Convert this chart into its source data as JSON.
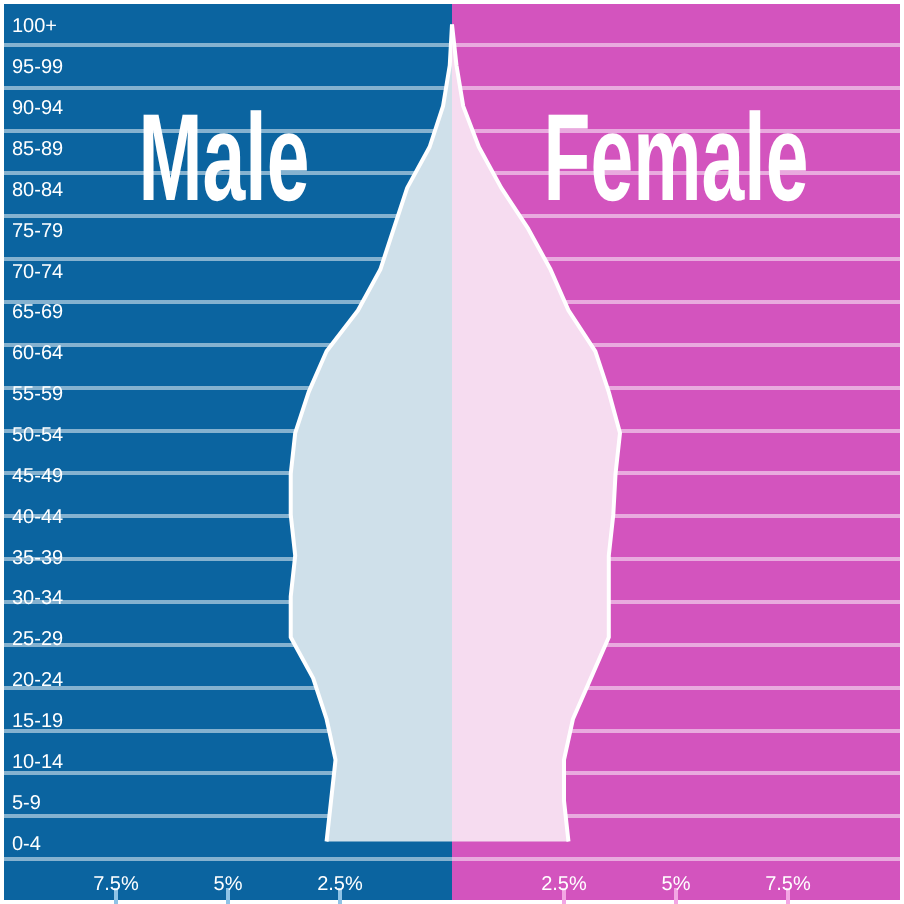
{
  "chart_data": {
    "type": "area",
    "orientation": "horizontal",
    "categories": [
      "100+",
      "95-99",
      "90-94",
      "85-89",
      "80-84",
      "75-79",
      "70-74",
      "65-69",
      "60-64",
      "55-59",
      "50-54",
      "45-49",
      "40-44",
      "35-39",
      "30-34",
      "25-29",
      "20-24",
      "15-19",
      "10-14",
      "5-9",
      "0-4"
    ],
    "series": [
      {
        "name": "Male",
        "color": "#cfe0ea",
        "values": [
          0,
          -0.05,
          -0.2,
          -0.5,
          -1.0,
          -1.3,
          -1.6,
          -2.1,
          -2.8,
          -3.2,
          -3.5,
          -3.6,
          -3.6,
          -3.5,
          -3.6,
          -3.6,
          -3.1,
          -2.8,
          -2.6,
          -2.7,
          -2.8
        ]
      },
      {
        "name": "Female",
        "color": "#f6dcf0",
        "values": [
          0,
          0.1,
          0.25,
          0.6,
          1.1,
          1.7,
          2.2,
          2.6,
          3.2,
          3.5,
          3.75,
          3.65,
          3.6,
          3.5,
          3.5,
          3.5,
          3.1,
          2.7,
          2.5,
          2.5,
          2.6
        ]
      }
    ],
    "xlim": [
      -10,
      10
    ],
    "xticks": [
      {
        "value": -7.5,
        "label": "7.5%"
      },
      {
        "value": -5,
        "label": "5%"
      },
      {
        "value": -2.5,
        "label": "2.5%"
      },
      {
        "value": 2.5,
        "label": "2.5%"
      },
      {
        "value": 5,
        "label": "5%"
      },
      {
        "value": 7.5,
        "label": "7.5%"
      }
    ],
    "tick_labels": "x",
    "bands": [
      {
        "axis": "x",
        "from": -10,
        "to": 0,
        "color": "#0b64a0"
      },
      {
        "axis": "x",
        "from": 0,
        "to": 10,
        "color": "#d354be"
      }
    ]
  }
}
